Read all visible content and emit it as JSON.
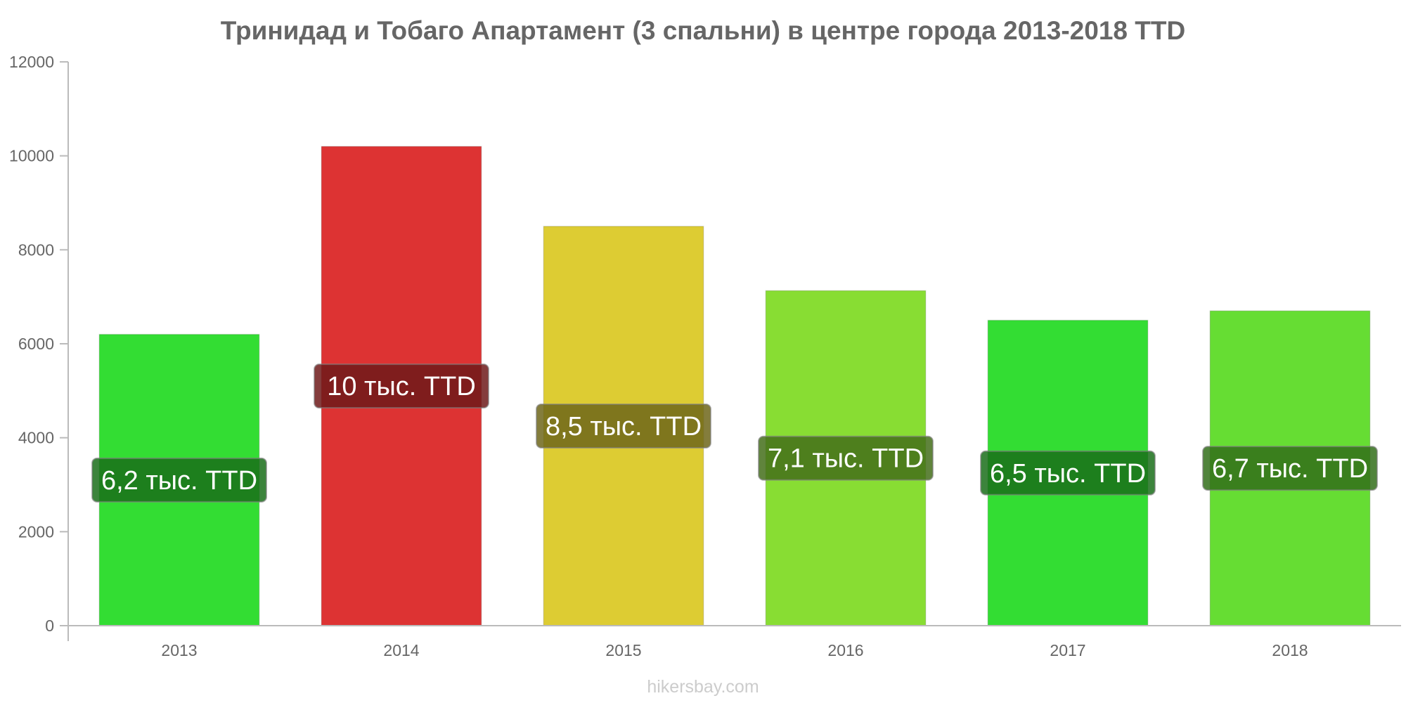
{
  "chart_data": {
    "type": "bar",
    "title": "Тринидад и Тобаго Апартамент (3 спальни) в центре города 2013-2018 TTD",
    "categories": [
      "2013",
      "2014",
      "2015",
      "2016",
      "2017",
      "2018"
    ],
    "values": [
      6200,
      10200,
      8500,
      7130,
      6500,
      6700
    ],
    "data_labels": [
      "6,2 тыс. TTD",
      "10 тыс. TTD",
      "8,5 тыс. TTD",
      "7,1 тыс. TTD",
      "6,5 тыс. TTD",
      "6,7 тыс. TTD"
    ],
    "bar_colors": [
      "#33dd33",
      "#dd3333",
      "#ddcc33",
      "#88dd33",
      "#33dd33",
      "#66dd33"
    ],
    "label_bg_colors": [
      "#1a6e1a",
      "#6e1a1a",
      "#6e661a",
      "#446e1a",
      "#1a6e1a",
      "#336e1a"
    ],
    "ylim": [
      0,
      12000
    ],
    "yticks": [
      0,
      2000,
      4000,
      6000,
      8000,
      10000,
      12000
    ],
    "grid": false,
    "xlabel": "",
    "ylabel": ""
  },
  "credit": "hikersbay.com"
}
